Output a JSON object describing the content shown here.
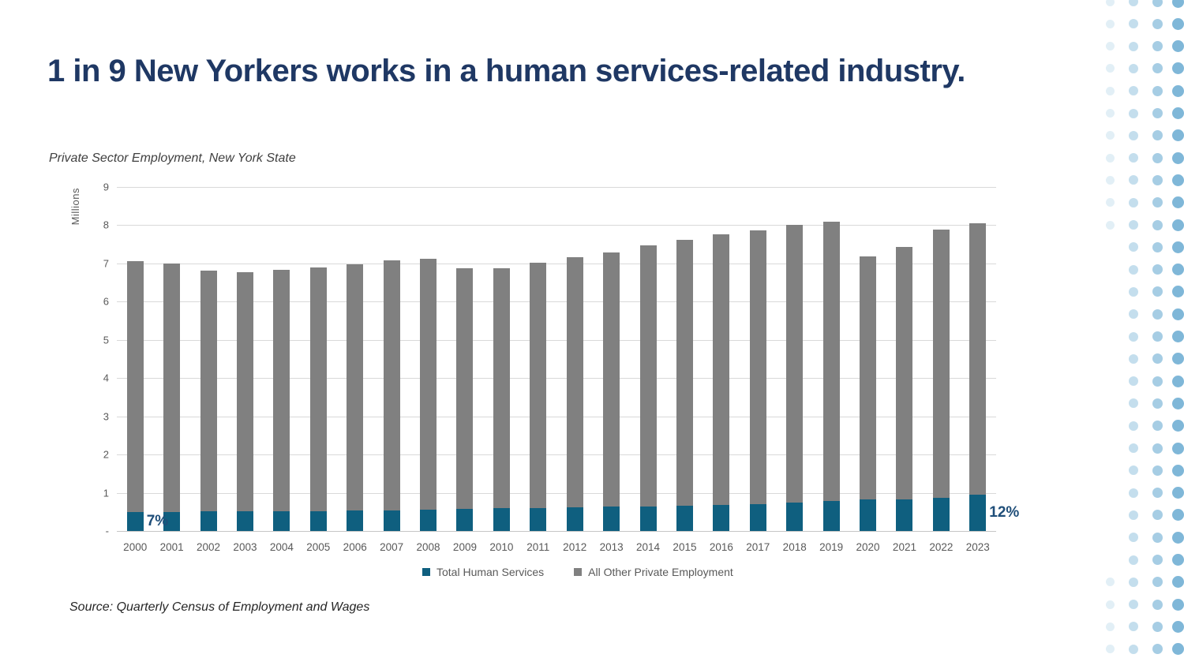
{
  "page": {
    "title": "1 in 9 New Yorkers works in a human services-related industry.",
    "source_note": "Source: Quarterly Census of Employment and Wages"
  },
  "chart_data": {
    "type": "bar",
    "stacked": true,
    "title": "Private Sector Employment, New York State",
    "ylabel": "Millions",
    "xlabel": "",
    "grid": true,
    "legend_position": "bottom",
    "ylim": [
      0,
      9
    ],
    "yticks": [
      {
        "value": 9,
        "label": "9"
      },
      {
        "value": 8,
        "label": "8"
      },
      {
        "value": 7,
        "label": "7"
      },
      {
        "value": 6,
        "label": "6"
      },
      {
        "value": 5,
        "label": "5"
      },
      {
        "value": 4,
        "label": "4"
      },
      {
        "value": 3,
        "label": "3"
      },
      {
        "value": 2,
        "label": "2"
      },
      {
        "value": 1,
        "label": "1"
      },
      {
        "value": 0,
        "label": "-"
      }
    ],
    "categories": [
      "2000",
      "2001",
      "2002",
      "2003",
      "2004",
      "2005",
      "2006",
      "2007",
      "2008",
      "2009",
      "2010",
      "2011",
      "2012",
      "2013",
      "2014",
      "2015",
      "2016",
      "2017",
      "2018",
      "2019",
      "2020",
      "2021",
      "2022",
      "2023"
    ],
    "series": [
      {
        "name": "Total Human Services",
        "color": "#0F5F7F",
        "values": [
          0.49,
          0.49,
          0.51,
          0.51,
          0.52,
          0.52,
          0.53,
          0.54,
          0.56,
          0.57,
          0.59,
          0.6,
          0.62,
          0.63,
          0.64,
          0.66,
          0.69,
          0.71,
          0.75,
          0.79,
          0.82,
          0.82,
          0.87,
          0.95
        ]
      },
      {
        "name": "All Other Private Employment",
        "color": "#808080",
        "values": [
          6.56,
          6.51,
          6.31,
          6.27,
          6.32,
          6.37,
          6.45,
          6.55,
          6.56,
          6.3,
          6.29,
          6.42,
          6.55,
          6.66,
          6.83,
          6.96,
          7.08,
          7.16,
          7.25,
          7.3,
          6.37,
          6.62,
          7.02,
          7.11
        ]
      }
    ],
    "annotations": [
      {
        "text": "7%",
        "category_index": 0
      },
      {
        "text": "12%",
        "category_index": 23
      }
    ]
  },
  "colors": {
    "title_navy": "#1F3864",
    "annotation_blue": "#1F4E79",
    "axis_text": "#595959",
    "gridline": "#D9D9D9"
  },
  "decor": {
    "dot_color": "#4D9BC9"
  }
}
